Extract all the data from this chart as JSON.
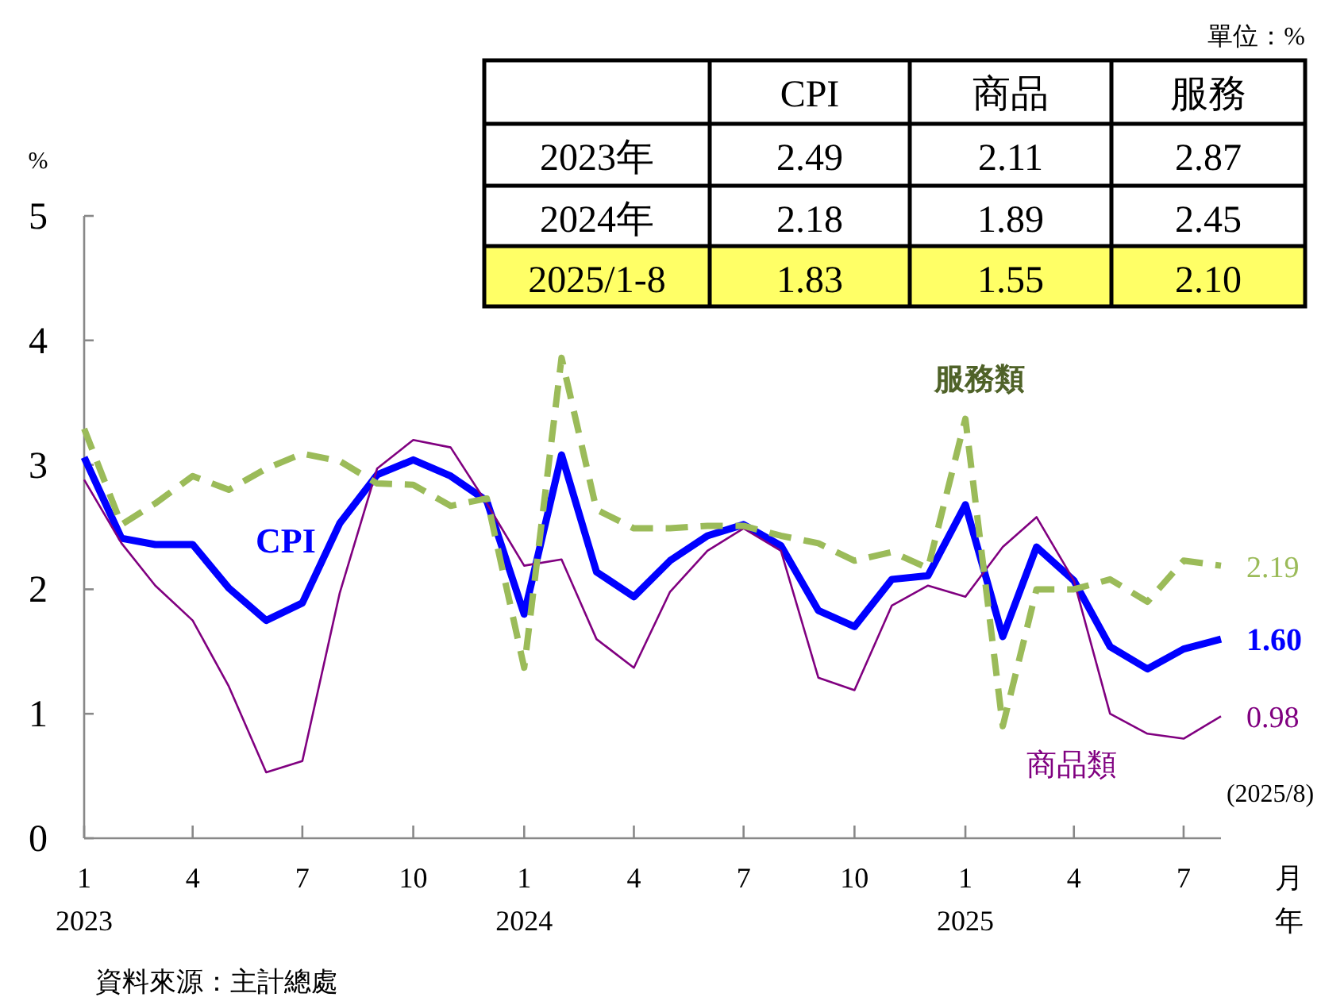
{
  "chart_data": [
    {
      "type": "line",
      "ylabel": "%",
      "xlabel": "月年",
      "x": [
        "2023-01",
        "2023-02",
        "2023-03",
        "2023-04",
        "2023-05",
        "2023-06",
        "2023-07",
        "2023-08",
        "2023-09",
        "2023-10",
        "2023-11",
        "2023-12",
        "2024-01",
        "2024-02",
        "2024-03",
        "2024-04",
        "2024-05",
        "2024-06",
        "2024-07",
        "2024-08",
        "2024-09",
        "2024-10",
        "2024-11",
        "2024-12",
        "2025-01",
        "2025-02",
        "2025-03",
        "2025-04",
        "2025-05",
        "2025-06",
        "2025-07",
        "2025-08"
      ],
      "series": [
        {
          "name": "CPI",
          "color": "#0000ff",
          "line_style": "solid",
          "values": [
            3.06,
            2.41,
            2.36,
            2.36,
            2.01,
            1.75,
            1.89,
            2.53,
            2.92,
            3.04,
            2.91,
            2.71,
            1.8,
            3.08,
            2.14,
            1.94,
            2.23,
            2.43,
            2.52,
            2.35,
            1.83,
            1.7,
            2.08,
            2.11,
            2.68,
            1.62,
            2.34,
            2.07,
            1.54,
            1.36,
            1.52,
            1.6
          ],
          "value_labels": [
            null,
            null,
            null,
            null,
            null,
            null,
            null,
            null,
            null,
            null,
            null,
            null,
            null,
            null,
            null,
            null,
            null,
            null,
            null,
            null,
            null,
            null,
            null,
            null,
            null,
            null,
            null,
            null,
            null,
            null,
            null,
            "1.60"
          ]
        },
        {
          "name": "商品類",
          "color": "#800080",
          "line_style": "solid",
          "values": [
            2.88,
            2.37,
            2.03,
            1.75,
            1.22,
            0.53,
            0.62,
            1.97,
            2.97,
            3.2,
            3.14,
            2.69,
            2.19,
            2.24,
            1.6,
            1.37,
            1.98,
            2.31,
            2.49,
            2.31,
            1.29,
            1.19,
            1.87,
            2.03,
            1.94,
            2.34,
            2.58,
            2.07,
            1.0,
            0.84,
            0.8,
            0.98
          ],
          "value_labels": [
            null,
            null,
            null,
            null,
            null,
            null,
            null,
            null,
            null,
            null,
            null,
            null,
            null,
            null,
            null,
            null,
            null,
            null,
            null,
            null,
            null,
            null,
            null,
            null,
            null,
            null,
            null,
            null,
            null,
            null,
            null,
            "0.98"
          ]
        },
        {
          "name": "服務類",
          "color": "#9bbb59",
          "line_style": "dashed",
          "values": [
            3.29,
            2.52,
            2.69,
            2.91,
            2.8,
            2.97,
            3.09,
            3.03,
            2.85,
            2.84,
            2.67,
            2.73,
            1.37,
            3.86,
            2.64,
            2.49,
            2.49,
            2.51,
            2.51,
            2.43,
            2.37,
            2.23,
            2.3,
            2.17,
            3.37,
            0.9,
            2.0,
            2.0,
            2.08,
            1.9,
            2.23,
            2.19
          ],
          "value_labels": [
            null,
            null,
            null,
            null,
            null,
            null,
            null,
            null,
            null,
            null,
            null,
            null,
            null,
            null,
            null,
            null,
            null,
            null,
            null,
            null,
            null,
            null,
            null,
            null,
            null,
            null,
            null,
            null,
            null,
            null,
            null,
            "2.19"
          ]
        }
      ],
      "xlim": [
        "2023-01",
        "2025-08"
      ],
      "xticks": [
        {
          "value": "2023-01",
          "label": "1\n2023"
        },
        {
          "value": "2023-04",
          "label": "4"
        },
        {
          "value": "2023-07",
          "label": "7"
        },
        {
          "value": "2023-10",
          "label": "10"
        },
        {
          "value": "2024-01",
          "label": "1\n2024"
        },
        {
          "value": "2024-04",
          "label": "4"
        },
        {
          "value": "2024-07",
          "label": "7"
        },
        {
          "value": "2024-10",
          "label": "10"
        },
        {
          "value": "2025-01",
          "label": "1\n2025"
        },
        {
          "value": "2025-04",
          "label": "4"
        },
        {
          "value": "2025-07",
          "label": "7"
        }
      ],
      "ylim": [
        0,
        5
      ],
      "yticks": [
        0,
        1,
        2,
        3,
        4,
        5
      ],
      "grid": false,
      "annotations": [
        "(2025/8)",
        "資料來源：主計總處"
      ]
    },
    {
      "type": "other",
      "annotations": [
        "單位：%"
      ],
      "categories": [
        "CPI",
        "商品",
        "服務"
      ],
      "y_categories": [
        "2023年",
        "2024年",
        "2025/1-8"
      ],
      "cell_labels": [
        [
          "2.49",
          "2.11",
          "2.87"
        ],
        [
          "2.18",
          "1.89",
          "2.45"
        ],
        [
          "1.83",
          "1.55",
          "2.10"
        ]
      ],
      "colors": [
        "#ffffff",
        "#ffffff",
        "#ffff66"
      ]
    }
  ]
}
